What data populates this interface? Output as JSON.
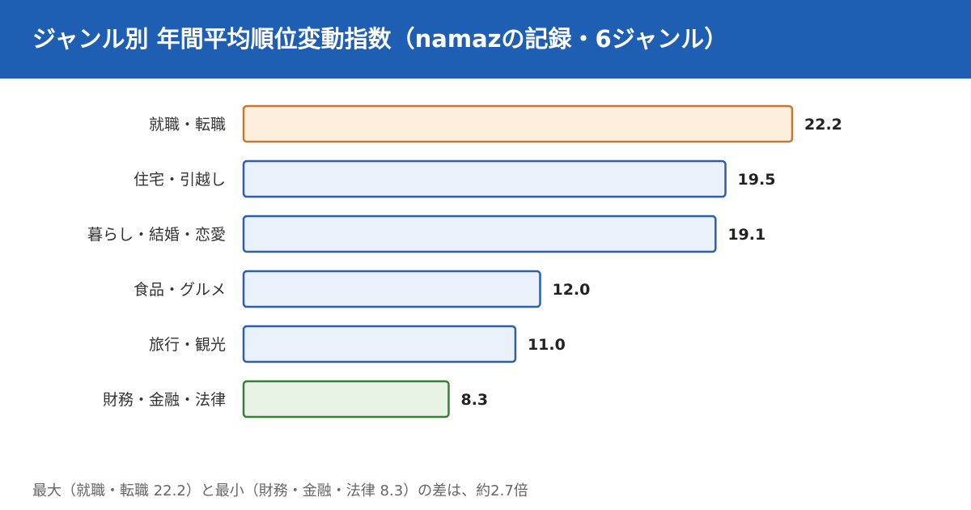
{
  "header": {
    "title": "ジャンル別 年間平均順位変動指数（namazの記録・6ジャンル）"
  },
  "footer": {
    "note": "最大（就職・転職 22.2）と最小（財務・金融・法律 8.3）の差は、約2.7倍"
  },
  "colors": {
    "header_bg": "#1f5fb3",
    "highlight_max_fill": "#fdeedd",
    "highlight_max_stroke": "#c8782a",
    "highlight_min_fill": "#e8f3e6",
    "highlight_min_stroke": "#3a7d3a",
    "default_fill": "#eaf1fb",
    "default_stroke": "#2b5fa8"
  },
  "chart_data": {
    "type": "bar",
    "orientation": "horizontal",
    "categories": [
      "就職・転職",
      "住宅・引越し",
      "暮らし・結婚・恋愛",
      "食品・グルメ",
      "旅行・観光",
      "財務・金融・法律"
    ],
    "values": [
      22.2,
      19.5,
      19.1,
      12.0,
      11.0,
      8.3
    ],
    "value_labels": [
      "22.2",
      "19.5",
      "19.1",
      "12.0",
      "11.0",
      "8.3"
    ],
    "highlight": [
      "max",
      "default",
      "default",
      "default",
      "default",
      "min"
    ],
    "xlim": [
      0,
      22.2
    ],
    "grid": false,
    "legend": "none"
  }
}
